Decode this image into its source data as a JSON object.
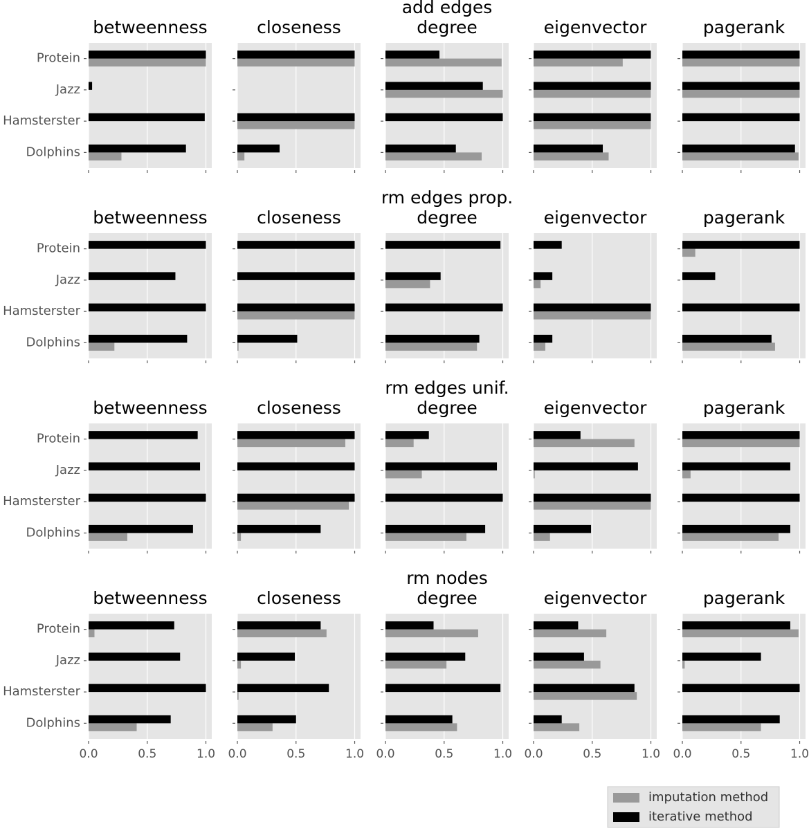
{
  "chart_data": {
    "type": "bar",
    "orientation": "horizontal",
    "categories": [
      "Protein",
      "Jazz",
      "Hamsterster",
      "Dolphins"
    ],
    "xlim": [
      0,
      1.05
    ],
    "xticks": [
      {
        "value": 0,
        "label": "0.0"
      },
      0.5,
      {
        "value": 1,
        "label": "1.0"
      }
    ],
    "grid": true,
    "legend": "lower right",
    "series": [
      {
        "name": "imputation method",
        "color": "#999999"
      },
      {
        "name": "iterative method",
        "color": "#000000"
      }
    ],
    "rows": [
      {
        "title": "add edges",
        "panels": [
          {
            "title": "betweenness",
            "values": [
              [
                1.0,
                0,
                0,
                0.28
              ],
              [
                1.0,
                0.03,
                0.99,
                0.83
              ]
            ]
          },
          {
            "title": "closeness",
            "values": [
              [
                1.0,
                0,
                1.0,
                0.06
              ],
              [
                1.0,
                0,
                1.0,
                0.36
              ]
            ]
          },
          {
            "title": "degree",
            "values": [
              [
                0.99,
                1.0,
                0,
                0.82
              ],
              [
                0.46,
                0.83,
                1.0,
                0.6
              ]
            ]
          },
          {
            "title": "eigenvector",
            "values": [
              [
                0.76,
                1.0,
                1.0,
                0.64
              ],
              [
                1.0,
                1.0,
                1.0,
                0.59
              ]
            ]
          },
          {
            "title": "pagerank",
            "values": [
              [
                1.0,
                1.0,
                0,
                0.99
              ],
              [
                1.0,
                1.0,
                1.0,
                0.96
              ]
            ]
          }
        ]
      },
      {
        "title": "rm edges prop.",
        "panels": [
          {
            "title": "betweenness",
            "values": [
              [
                0,
                0,
                0,
                0.22
              ],
              [
                1.0,
                0.74,
                1.0,
                0.84
              ]
            ]
          },
          {
            "title": "closeness",
            "values": [
              [
                0,
                0,
                1.0,
                0.01
              ],
              [
                1.0,
                1.0,
                1.0,
                0.51
              ]
            ]
          },
          {
            "title": "degree",
            "values": [
              [
                0,
                0.38,
                0,
                0.78
              ],
              [
                0.98,
                0.47,
                1.0,
                0.8
              ]
            ]
          },
          {
            "title": "eigenvector",
            "values": [
              [
                0,
                0.06,
                1.0,
                0.1
              ],
              [
                0.24,
                0.16,
                1.0,
                0.16
              ]
            ]
          },
          {
            "title": "pagerank",
            "values": [
              [
                0.11,
                0,
                0,
                0.79
              ],
              [
                1.0,
                0.28,
                1.0,
                0.76
              ]
            ]
          }
        ]
      },
      {
        "title": "rm edges unif.",
        "panels": [
          {
            "title": "betweenness",
            "values": [
              [
                0,
                0,
                0,
                0.33
              ],
              [
                0.93,
                0.95,
                1.0,
                0.89
              ]
            ]
          },
          {
            "title": "closeness",
            "values": [
              [
                0.92,
                0,
                0.95,
                0.03
              ],
              [
                1.0,
                1.0,
                1.0,
                0.71
              ]
            ]
          },
          {
            "title": "degree",
            "values": [
              [
                0.24,
                0.31,
                0,
                0.69
              ],
              [
                0.37,
                0.95,
                1.0,
                0.85
              ]
            ]
          },
          {
            "title": "eigenvector",
            "values": [
              [
                0.86,
                0.01,
                1.0,
                0.14
              ],
              [
                0.4,
                0.89,
                1.0,
                0.49
              ]
            ]
          },
          {
            "title": "pagerank",
            "values": [
              [
                1.0,
                0.07,
                0,
                0.82
              ],
              [
                1.0,
                0.92,
                1.0,
                0.92
              ]
            ]
          }
        ]
      },
      {
        "title": "rm nodes",
        "panels": [
          {
            "title": "betweenness",
            "values": [
              [
                0.05,
                0,
                0,
                0.41
              ],
              [
                0.73,
                0.78,
                1.0,
                0.7
              ]
            ]
          },
          {
            "title": "closeness",
            "values": [
              [
                0.76,
                0.03,
                0.01,
                0.3
              ],
              [
                0.71,
                0.49,
                0.78,
                0.5
              ]
            ]
          },
          {
            "title": "degree",
            "values": [
              [
                0.79,
                0.52,
                0,
                0.61
              ],
              [
                0.41,
                0.68,
                0.98,
                0.57
              ]
            ]
          },
          {
            "title": "eigenvector",
            "values": [
              [
                0.62,
                0.57,
                0.88,
                0.39
              ],
              [
                0.38,
                0.43,
                0.86,
                0.24
              ]
            ]
          },
          {
            "title": "pagerank",
            "values": [
              [
                0.99,
                0.02,
                0,
                0.67
              ],
              [
                0.92,
                0.67,
                1.0,
                0.83
              ]
            ]
          }
        ]
      }
    ]
  }
}
